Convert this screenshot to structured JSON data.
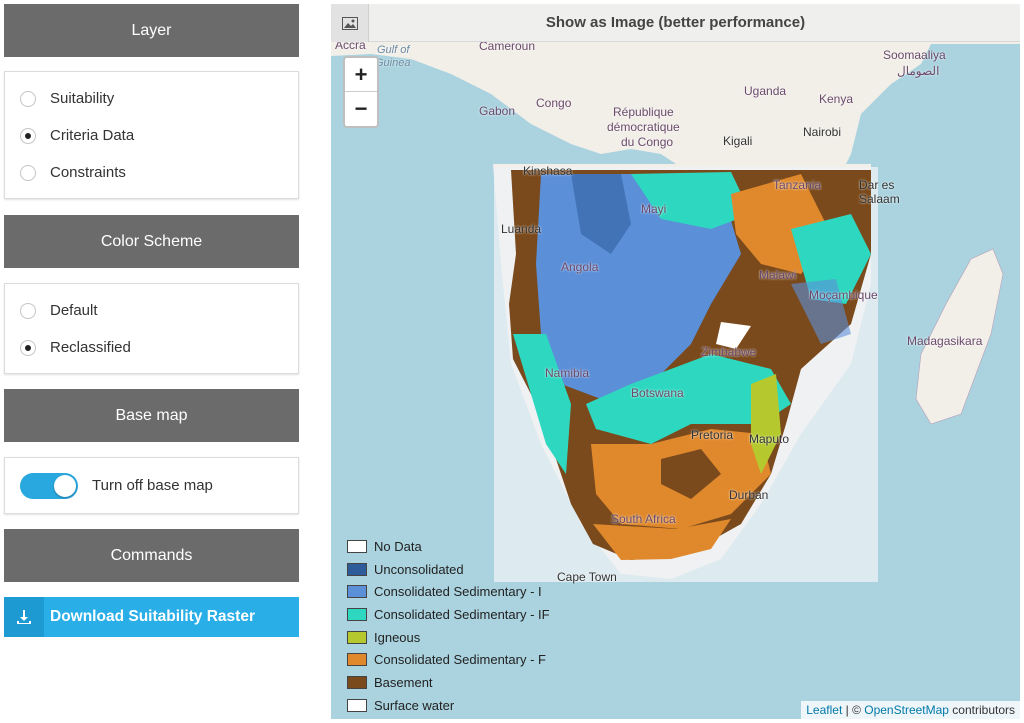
{
  "sidebar": {
    "layer_header": "Layer",
    "layer_options": [
      {
        "label": "Suitability",
        "selected": false
      },
      {
        "label": "Criteria Data",
        "selected": true
      },
      {
        "label": "Constraints",
        "selected": false
      }
    ],
    "color_header": "Color Scheme",
    "color_options": [
      {
        "label": "Default",
        "selected": false
      },
      {
        "label": "Reclassified",
        "selected": true
      }
    ],
    "basemap_header": "Base map",
    "basemap_toggle_label": "Turn off base map",
    "basemap_toggle_on": true,
    "commands_header": "Commands",
    "download_label": "Download Suitability Raster"
  },
  "map": {
    "topbar_label": "Show as Image (better performance)",
    "zoom_in": "+",
    "zoom_out": "−",
    "labels": {
      "accra": "Accra",
      "gulf": "Gulf of",
      "guinea": "Guinea",
      "cameroun": "Cameroun",
      "gabon": "Gabon",
      "congo": "Congo",
      "drc1": "République",
      "drc2": "démocratique",
      "drc3": "du Congo",
      "uganda": "Uganda",
      "kenya": "Kenya",
      "kigali": "Kigali",
      "nairobi": "Nairobi",
      "somalia1": "Soomaaliya",
      "somalia2": "الصومال",
      "kinshasa": "Kinshasa",
      "tanzania": "Tanzania",
      "dar1": "Dar es",
      "dar2": "Salaam",
      "mayi": "Mayi",
      "luanda": "Luanda",
      "angola": "Angola",
      "malawi": "Malawi",
      "mocambique": "Moçambique",
      "zimbabwe": "Zimbabwe",
      "namibia": "Namibia",
      "botswana": "Botswana",
      "madagasikara": "Madagasikara",
      "pretoria": "Pretoria",
      "maputo": "Maputo",
      "durban": "Durban",
      "southafrica": "South Africa",
      "capetown": "Cape Town"
    },
    "legend": [
      {
        "label": "No Data",
        "color": "#ffffff"
      },
      {
        "label": "Unconsolidated",
        "color": "#2e5c9a"
      },
      {
        "label": "Consolidated Sedimentary - I",
        "color": "#5b8fd8"
      },
      {
        "label": "Consolidated Sedimentary - IF",
        "color": "#2ed8c0"
      },
      {
        "label": "Igneous",
        "color": "#b5c92e"
      },
      {
        "label": "Consolidated Sedimentary - F",
        "color": "#e0892c"
      },
      {
        "label": "Basement",
        "color": "#7a4a1c"
      },
      {
        "label": "Surface water",
        "color": "#ffffff"
      }
    ],
    "attribution": {
      "leaflet": "Leaflet",
      "sep": " | © ",
      "osm": "OpenStreetMap",
      "suffix": " contributors"
    }
  }
}
